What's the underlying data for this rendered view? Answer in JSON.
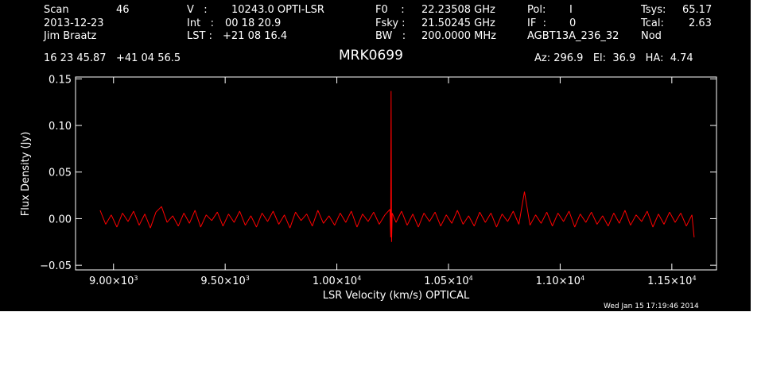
{
  "header": {
    "scan_label": "Scan",
    "scan_value": "46",
    "date": "2013-12-23",
    "observer": "Jim Braatz",
    "velocity_label": "V   :",
    "velocity_value": "10243.0 OPTI-LSR",
    "int_label": "Int   :",
    "int_value": "00 18 20.9",
    "lst_label": "LST :",
    "lst_value": "+21 08 16.4",
    "f0_label": "F0    :",
    "f0_value": "22.23508 GHz",
    "fsky_label": "Fsky :",
    "fsky_value": "21.50245 GHz",
    "bw_label": "BW   :",
    "bw_value": "200.0000 MHz",
    "pol_label": "Pol:",
    "pol_value": "I",
    "if_label": "IF  :",
    "if_value": "0",
    "project": "AGBT13A_236_32",
    "tsys_label": "Tsys:",
    "tsys_value": "65.17",
    "tcal_label": "Tcal:",
    "tcal_value": "2.63",
    "proc": "Nod",
    "coords": "16 23 45.87   +41 04 56.5",
    "source": "MRK0699",
    "az_el_ha": "Az: 296.9   El:  36.9   HA:  4.74",
    "timestamp": "Wed Jan 15 17:19:46 2014"
  },
  "colors": {
    "background": "#000000",
    "axes": "#ffffff",
    "trace": "#ff0000",
    "page": "#ffffff"
  },
  "chart_data": {
    "type": "line",
    "title": "MRK0699",
    "xlabel": "LSR Velocity (km/s) OPTICAL",
    "ylabel": "Flux Density (Jy)",
    "xlim": [
      8830,
      11700
    ],
    "ylim": [
      -0.055,
      0.152
    ],
    "xticks": [
      {
        "value": 9000,
        "mantissa": "9.00",
        "exp": "3"
      },
      {
        "value": 9500,
        "mantissa": "9.50",
        "exp": "3"
      },
      {
        "value": 10000,
        "mantissa": "1.00",
        "exp": "4"
      },
      {
        "value": 10500,
        "mantissa": "1.05",
        "exp": "4"
      },
      {
        "value": 11000,
        "mantissa": "1.10",
        "exp": "4"
      },
      {
        "value": 11500,
        "mantissa": "1.15",
        "exp": "4"
      }
    ],
    "yticks": [
      {
        "value": -0.05,
        "label": "−0.05"
      },
      {
        "value": 0.0,
        "label": "0.00"
      },
      {
        "value": 0.05,
        "label": "0.05"
      },
      {
        "value": 0.1,
        "label": "0.10"
      },
      {
        "value": 0.15,
        "label": "0.15"
      }
    ],
    "grid": false,
    "series": [
      {
        "x": [
          8940,
          8965,
          8990,
          9015,
          9040,
          9065,
          9090,
          9115,
          9140,
          9165,
          9190,
          9215,
          9240,
          9265,
          9290,
          9315,
          9340,
          9365,
          9390,
          9415,
          9440,
          9465,
          9490,
          9515,
          9540,
          9565,
          9590,
          9615,
          9640,
          9665,
          9690,
          9715,
          9740,
          9765,
          9790,
          9815,
          9840,
          9865,
          9890,
          9915,
          9940,
          9965,
          9990,
          10015,
          10040,
          10065,
          10090,
          10115,
          10140,
          10165,
          10190,
          10215,
          10238,
          10241,
          10243,
          10245,
          10248,
          10265,
          10290,
          10315,
          10340,
          10365,
          10390,
          10415,
          10440,
          10465,
          10490,
          10515,
          10540,
          10565,
          10590,
          10615,
          10640,
          10665,
          10690,
          10715,
          10740,
          10765,
          10790,
          10815,
          10840,
          10865,
          10890,
          10915,
          10940,
          10965,
          10990,
          11015,
          11040,
          11065,
          11090,
          11115,
          11140,
          11165,
          11190,
          11215,
          11240,
          11265,
          11290,
          11315,
          11340,
          11365,
          11390,
          11415,
          11440,
          11465,
          11490,
          11515,
          11540,
          11565,
          11590,
          11600
        ],
        "y": [
          0.009,
          -0.006,
          0.004,
          -0.009,
          0.006,
          -0.003,
          0.008,
          -0.007,
          0.005,
          -0.01,
          0.007,
          0.013,
          -0.004,
          0.003,
          -0.008,
          0.006,
          -0.005,
          0.009,
          -0.009,
          0.004,
          -0.002,
          0.007,
          -0.008,
          0.005,
          -0.004,
          0.008,
          -0.007,
          0.003,
          -0.009,
          0.006,
          -0.003,
          0.008,
          -0.006,
          0.004,
          -0.01,
          0.007,
          -0.002,
          0.005,
          -0.008,
          0.009,
          -0.005,
          0.003,
          -0.007,
          0.006,
          -0.004,
          0.008,
          -0.009,
          0.005,
          -0.003,
          0.007,
          -0.006,
          0.004,
          0.01,
          -0.02,
          0.137,
          -0.025,
          0.006,
          -0.004,
          0.008,
          -0.007,
          0.005,
          -0.009,
          0.006,
          -0.003,
          0.007,
          -0.008,
          0.004,
          -0.005,
          0.009,
          -0.006,
          0.003,
          -0.008,
          0.007,
          -0.004,
          0.006,
          -0.009,
          0.005,
          -0.003,
          0.008,
          -0.006,
          0.029,
          -0.007,
          0.004,
          -0.005,
          0.007,
          -0.008,
          0.006,
          -0.003,
          0.008,
          -0.009,
          0.005,
          -0.004,
          0.007,
          -0.006,
          0.003,
          -0.008,
          0.006,
          -0.005,
          0.009,
          -0.007,
          0.004,
          -0.003,
          0.008,
          -0.009,
          0.005,
          -0.006,
          0.007,
          -0.004,
          0.006,
          -0.008,
          0.004,
          -0.02
        ]
      }
    ]
  }
}
